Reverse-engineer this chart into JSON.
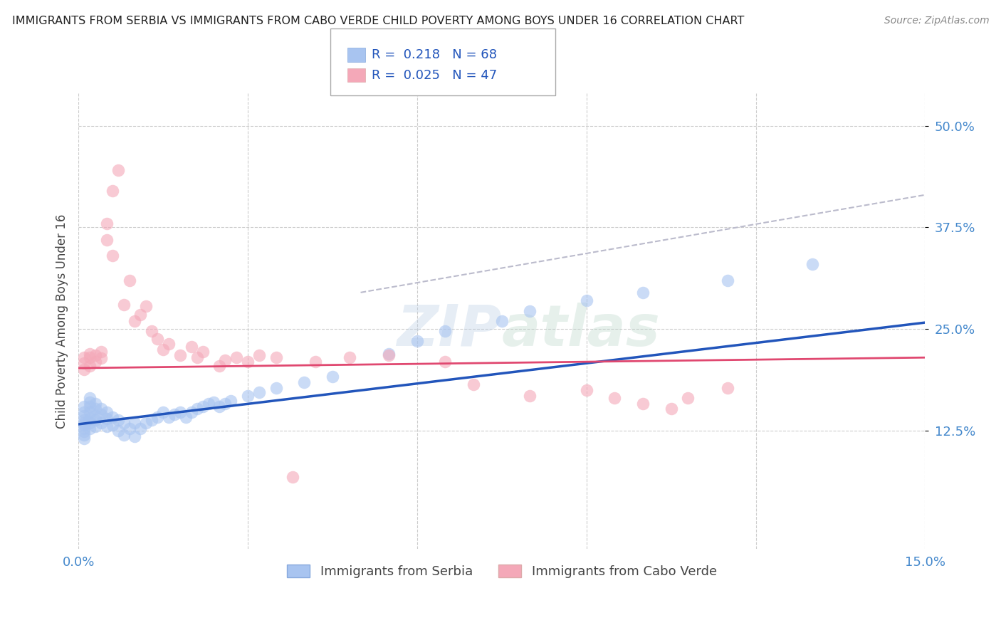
{
  "title": "IMMIGRANTS FROM SERBIA VS IMMIGRANTS FROM CABO VERDE CHILD POVERTY AMONG BOYS UNDER 16 CORRELATION CHART",
  "source": "Source: ZipAtlas.com",
  "ylabel": "Child Poverty Among Boys Under 16",
  "xlim": [
    0.0,
    0.15
  ],
  "ylim": [
    -0.02,
    0.54
  ],
  "serbia_R": 0.218,
  "serbia_N": 68,
  "caboverde_R": 0.025,
  "caboverde_N": 47,
  "serbia_color": "#a8c4f0",
  "caboverde_color": "#f4a8b8",
  "serbia_line_color": "#2255bb",
  "caboverde_line_color": "#e04870",
  "trend_line_color": "#bbbbcc",
  "watermark": "ZIPAtlas",
  "background_color": "#ffffff",
  "grid_color": "#cccccc",
  "serbia_x": [
    0.001,
    0.001,
    0.001,
    0.001,
    0.001,
    0.001,
    0.001,
    0.001,
    0.001,
    0.001,
    0.002,
    0.002,
    0.002,
    0.002,
    0.002,
    0.002,
    0.002,
    0.003,
    0.003,
    0.003,
    0.003,
    0.003,
    0.004,
    0.004,
    0.004,
    0.005,
    0.005,
    0.005,
    0.006,
    0.006,
    0.007,
    0.007,
    0.008,
    0.008,
    0.009,
    0.01,
    0.01,
    0.011,
    0.012,
    0.013,
    0.014,
    0.015,
    0.016,
    0.017,
    0.018,
    0.019,
    0.02,
    0.021,
    0.022,
    0.023,
    0.024,
    0.025,
    0.026,
    0.027,
    0.03,
    0.032,
    0.035,
    0.04,
    0.045,
    0.055,
    0.06,
    0.065,
    0.075,
    0.08,
    0.09,
    0.1,
    0.115,
    0.13
  ],
  "serbia_y": [
    0.155,
    0.148,
    0.143,
    0.138,
    0.135,
    0.132,
    0.128,
    0.124,
    0.12,
    0.115,
    0.165,
    0.16,
    0.155,
    0.148,
    0.14,
    0.135,
    0.128,
    0.158,
    0.152,
    0.143,
    0.138,
    0.13,
    0.152,
    0.145,
    0.135,
    0.148,
    0.14,
    0.13,
    0.142,
    0.132,
    0.138,
    0.125,
    0.135,
    0.12,
    0.128,
    0.135,
    0.118,
    0.128,
    0.135,
    0.138,
    0.142,
    0.148,
    0.142,
    0.145,
    0.148,
    0.142,
    0.148,
    0.152,
    0.155,
    0.158,
    0.16,
    0.155,
    0.158,
    0.162,
    0.168,
    0.172,
    0.178,
    0.185,
    0.192,
    0.22,
    0.235,
    0.248,
    0.26,
    0.272,
    0.285,
    0.295,
    0.31,
    0.33
  ],
  "cabo_x": [
    0.001,
    0.001,
    0.001,
    0.002,
    0.002,
    0.002,
    0.003,
    0.003,
    0.004,
    0.004,
    0.005,
    0.005,
    0.006,
    0.006,
    0.007,
    0.008,
    0.009,
    0.01,
    0.011,
    0.012,
    0.013,
    0.014,
    0.015,
    0.016,
    0.018,
    0.02,
    0.021,
    0.022,
    0.025,
    0.026,
    0.028,
    0.03,
    0.032,
    0.035,
    0.038,
    0.042,
    0.048,
    0.055,
    0.065,
    0.07,
    0.08,
    0.09,
    0.095,
    0.1,
    0.105,
    0.108,
    0.115
  ],
  "cabo_y": [
    0.215,
    0.208,
    0.2,
    0.22,
    0.215,
    0.205,
    0.218,
    0.21,
    0.222,
    0.214,
    0.38,
    0.36,
    0.34,
    0.42,
    0.445,
    0.28,
    0.31,
    0.26,
    0.268,
    0.278,
    0.248,
    0.238,
    0.225,
    0.232,
    0.218,
    0.228,
    0.215,
    0.222,
    0.205,
    0.212,
    0.215,
    0.21,
    0.218,
    0.215,
    0.068,
    0.21,
    0.215,
    0.218,
    0.21,
    0.182,
    0.168,
    0.175,
    0.165,
    0.158,
    0.152,
    0.165,
    0.178
  ]
}
